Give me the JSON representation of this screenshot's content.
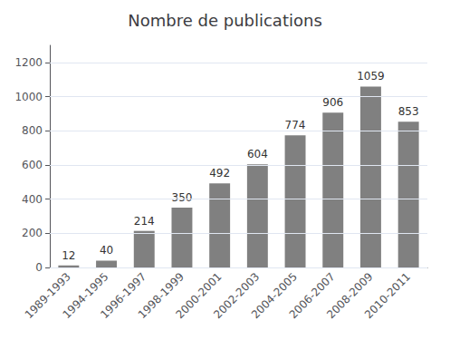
{
  "chart_data": {
    "type": "bar",
    "title": "Nombre de publications",
    "categories": [
      "1989-1993",
      "1994-1995",
      "1996-1997",
      "1998-1999",
      "2000-2001",
      "2002-2003",
      "2004-2005",
      "2006-2007",
      "2008-2009",
      "2010-2011"
    ],
    "values": [
      12,
      40,
      214,
      350,
      492,
      604,
      774,
      906,
      1059,
      853
    ],
    "color": "#808080",
    "ylim": [
      0,
      1300
    ],
    "yticks": [
      0,
      200,
      400,
      600,
      800,
      1000,
      1200
    ],
    "grid": true,
    "data_labels": true
  }
}
